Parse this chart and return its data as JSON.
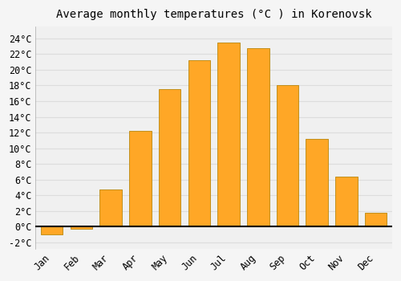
{
  "title": "Average monthly temperatures (°C ) in Korenovsk",
  "months": [
    "Jan",
    "Feb",
    "Mar",
    "Apr",
    "May",
    "Jun",
    "Jul",
    "Aug",
    "Sep",
    "Oct",
    "Nov",
    "Dec"
  ],
  "values": [
    -1.0,
    -0.3,
    4.7,
    12.2,
    17.5,
    21.2,
    23.5,
    22.8,
    18.0,
    11.2,
    6.4,
    1.8
  ],
  "bar_color": "#FFA726",
  "bar_edge_color": "#B8860B",
  "background_color": "#F5F5F5",
  "plot_bg_color": "#F0F0F0",
  "grid_color": "#DDDDDD",
  "yticks": [
    -2,
    0,
    2,
    4,
    6,
    8,
    10,
    12,
    14,
    16,
    18,
    20,
    22,
    24
  ],
  "ylim": [
    -2.8,
    25.5
  ],
  "title_fontsize": 10,
  "tick_fontsize": 8.5,
  "font_family": "monospace"
}
